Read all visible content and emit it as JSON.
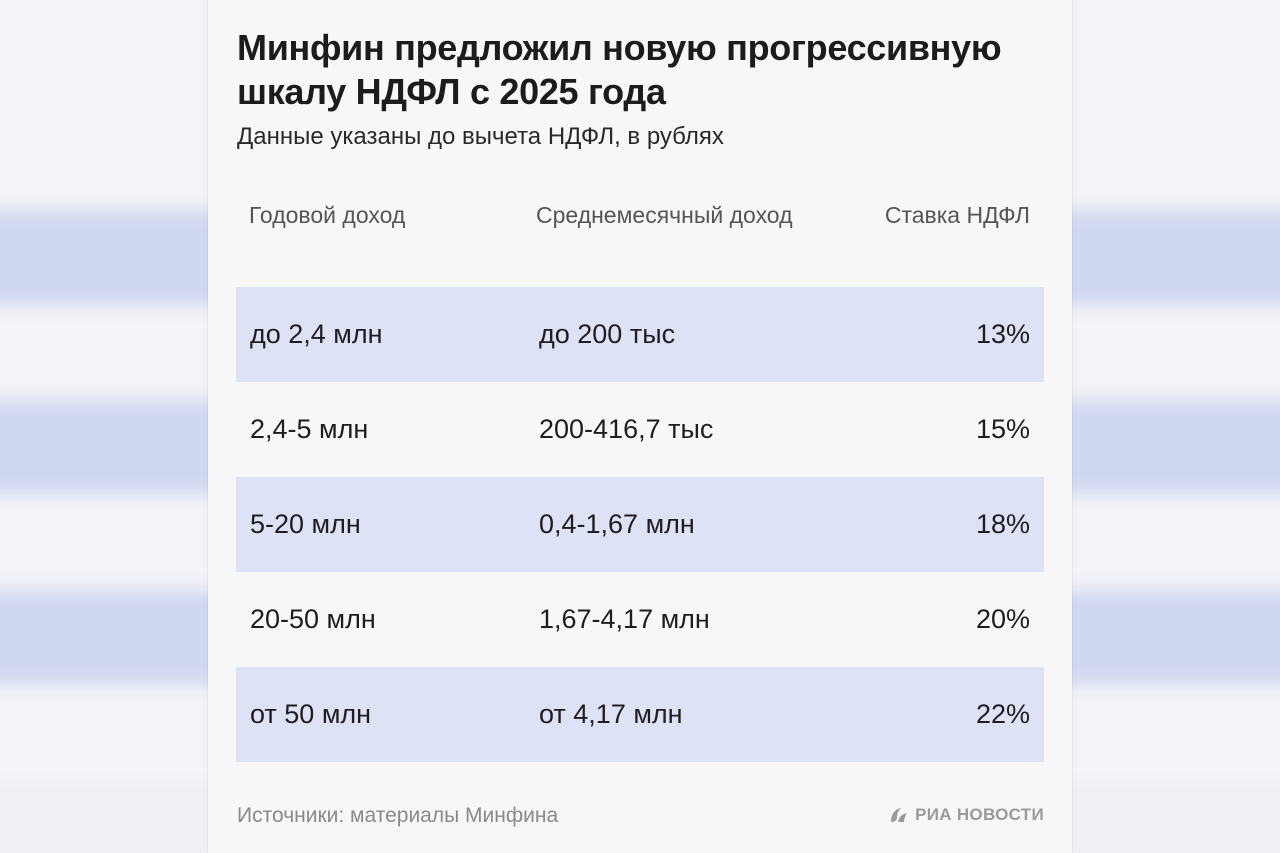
{
  "title": "Минфин предложил новую прогрессивную шкалу НДФЛ с 2025 года",
  "subtitle": "Данные указаны до вычета НДФЛ, в рублях",
  "table": {
    "headers": {
      "annual": "Годовой доход",
      "monthly": "Среднемесячный доход",
      "rate": "Ставка НДФЛ"
    },
    "rows": [
      {
        "annual": "до 2,4 млн",
        "monthly": "до 200 тыс",
        "rate": "13%"
      },
      {
        "annual": "2,4-5 млн",
        "monthly": "200-416,7 тыс",
        "rate": "15%"
      },
      {
        "annual": "5-20 млн",
        "monthly": "0,4-1,67 млн",
        "rate": "18%"
      },
      {
        "annual": "20-50 млн",
        "monthly": "1,67-4,17 млн",
        "rate": "20%"
      },
      {
        "annual": "от 50 млн",
        "monthly": "от 4,17 млн",
        "rate": "22%"
      }
    ]
  },
  "source": "Источники: материалы Минфина",
  "brand": {
    "name": "РИА НОВОСТИ",
    "icon": "ria-logo-icon"
  },
  "colors": {
    "row_shade": "#dde2f6",
    "card_background": "#f7f7f7",
    "title_text": "#1c1c1c"
  }
}
